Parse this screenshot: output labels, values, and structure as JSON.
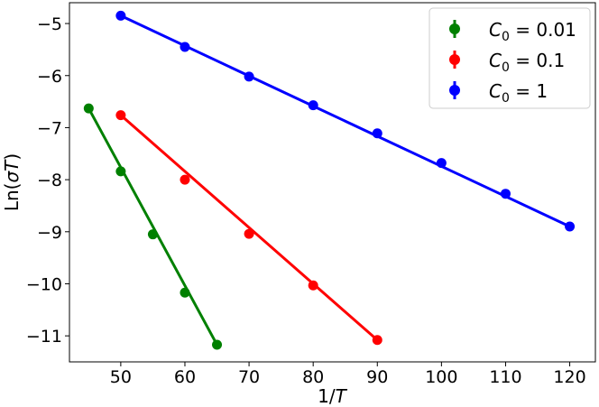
{
  "chart_data": {
    "type": "line",
    "xlabel": "1/T",
    "ylabel": "Ln(σT)",
    "xlim": [
      42,
      124
    ],
    "ylim": [
      -11.5,
      -4.6
    ],
    "xticks": [
      50,
      60,
      70,
      80,
      90,
      100,
      110,
      120
    ],
    "yticks": [
      -5,
      -6,
      -7,
      -8,
      -9,
      -10,
      -11
    ],
    "xtick_labels": [
      "50",
      "60",
      "70",
      "80",
      "90",
      "100",
      "110",
      "120"
    ],
    "ytick_labels": [
      "−5",
      "−6",
      "−7",
      "−8",
      "−9",
      "−10",
      "−11"
    ],
    "grid": false,
    "legend_position": "top-right",
    "series": [
      {
        "name": "C0 = 0.01",
        "legend_main": "C",
        "legend_sub": "0",
        "legend_rest": " = 0.01",
        "color": "#008000",
        "x": [
          45,
          50,
          55,
          60,
          65
        ],
        "y": [
          -6.63,
          -7.84,
          -9.05,
          -10.17,
          -11.17
        ],
        "fit": [
          [
            45,
            -6.63
          ],
          [
            65,
            -11.17
          ]
        ]
      },
      {
        "name": "C0 = 0.1",
        "legend_main": "C",
        "legend_sub": "0",
        "legend_rest": " = 0.1",
        "color": "#ff0000",
        "x": [
          50,
          60,
          70,
          80,
          90
        ],
        "y": [
          -6.76,
          -8.0,
          -9.04,
          -10.03,
          -11.08
        ],
        "fit": [
          [
            50,
            -6.76
          ],
          [
            90,
            -11.08
          ]
        ]
      },
      {
        "name": "C0 = 1",
        "legend_main": "C",
        "legend_sub": "0",
        "legend_rest": " = 1",
        "color": "#0000ff",
        "x": [
          50,
          60,
          70,
          80,
          90,
          100,
          110,
          120
        ],
        "y": [
          -4.85,
          -5.45,
          -6.02,
          -6.57,
          -7.11,
          -7.68,
          -8.27,
          -8.9
        ],
        "fit": [
          [
            50,
            -4.85
          ],
          [
            120,
            -8.9
          ]
        ]
      }
    ]
  }
}
